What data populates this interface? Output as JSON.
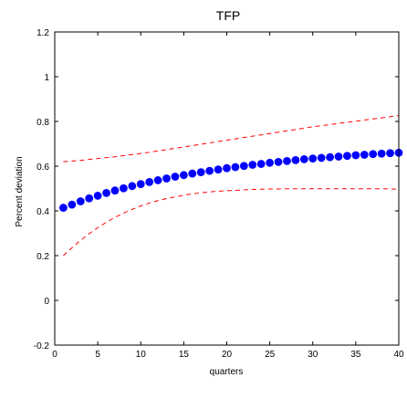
{
  "chart_data": {
    "type": "line",
    "title": "TFP",
    "xlabel": "quarters",
    "ylabel": "Percent deviation",
    "xlim": [
      0,
      40
    ],
    "ylim": [
      -0.2,
      1.2
    ],
    "xticks": [
      0,
      5,
      10,
      15,
      20,
      25,
      30,
      35,
      40
    ],
    "yticks": [
      -0.2,
      0,
      0.2,
      0.4,
      0.6,
      0.8,
      1,
      1.2
    ],
    "ytick_labels": [
      "-0.2",
      "0",
      "0.2",
      "0.4",
      "0.6",
      "0.8",
      "1",
      "1.2"
    ],
    "grid": false,
    "x": [
      1,
      2,
      3,
      4,
      5,
      6,
      7,
      8,
      9,
      10,
      11,
      12,
      13,
      14,
      15,
      16,
      17,
      18,
      19,
      20,
      21,
      22,
      23,
      24,
      25,
      26,
      27,
      28,
      29,
      30,
      31,
      32,
      33,
      34,
      35,
      36,
      37,
      38,
      39,
      40
    ],
    "series": [
      {
        "style": "dots",
        "color": "#0000ff",
        "values": [
          0.414,
          0.428,
          0.443,
          0.456,
          0.468,
          0.48,
          0.491,
          0.501,
          0.511,
          0.52,
          0.529,
          0.537,
          0.545,
          0.553,
          0.56,
          0.567,
          0.573,
          0.579,
          0.585,
          0.591,
          0.596,
          0.601,
          0.606,
          0.61,
          0.615,
          0.619,
          0.623,
          0.627,
          0.631,
          0.634,
          0.637,
          0.64,
          0.643,
          0.646,
          0.649,
          0.651,
          0.654,
          0.656,
          0.658,
          0.66
        ]
      },
      {
        "style": "dashed",
        "color": "#ff0000",
        "values": [
          0.62,
          0.623,
          0.626,
          0.63,
          0.634,
          0.638,
          0.642,
          0.647,
          0.652,
          0.657,
          0.662,
          0.668,
          0.674,
          0.68,
          0.686,
          0.692,
          0.698,
          0.704,
          0.71,
          0.716,
          0.722,
          0.728,
          0.734,
          0.74,
          0.746,
          0.752,
          0.758,
          0.764,
          0.77,
          0.776,
          0.781,
          0.786,
          0.791,
          0.796,
          0.801,
          0.806,
          0.811,
          0.816,
          0.821,
          0.826
        ]
      },
      {
        "style": "dashed",
        "color": "#ff0000",
        "values": [
          0.2,
          0.235,
          0.268,
          0.298,
          0.325,
          0.349,
          0.371,
          0.39,
          0.407,
          0.422,
          0.435,
          0.446,
          0.455,
          0.463,
          0.47,
          0.476,
          0.481,
          0.485,
          0.488,
          0.49,
          0.492,
          0.494,
          0.496,
          0.497,
          0.498,
          0.498,
          0.499,
          0.499,
          0.499,
          0.499,
          0.499,
          0.499,
          0.499,
          0.499,
          0.499,
          0.499,
          0.499,
          0.499,
          0.498,
          0.497
        ]
      }
    ]
  }
}
